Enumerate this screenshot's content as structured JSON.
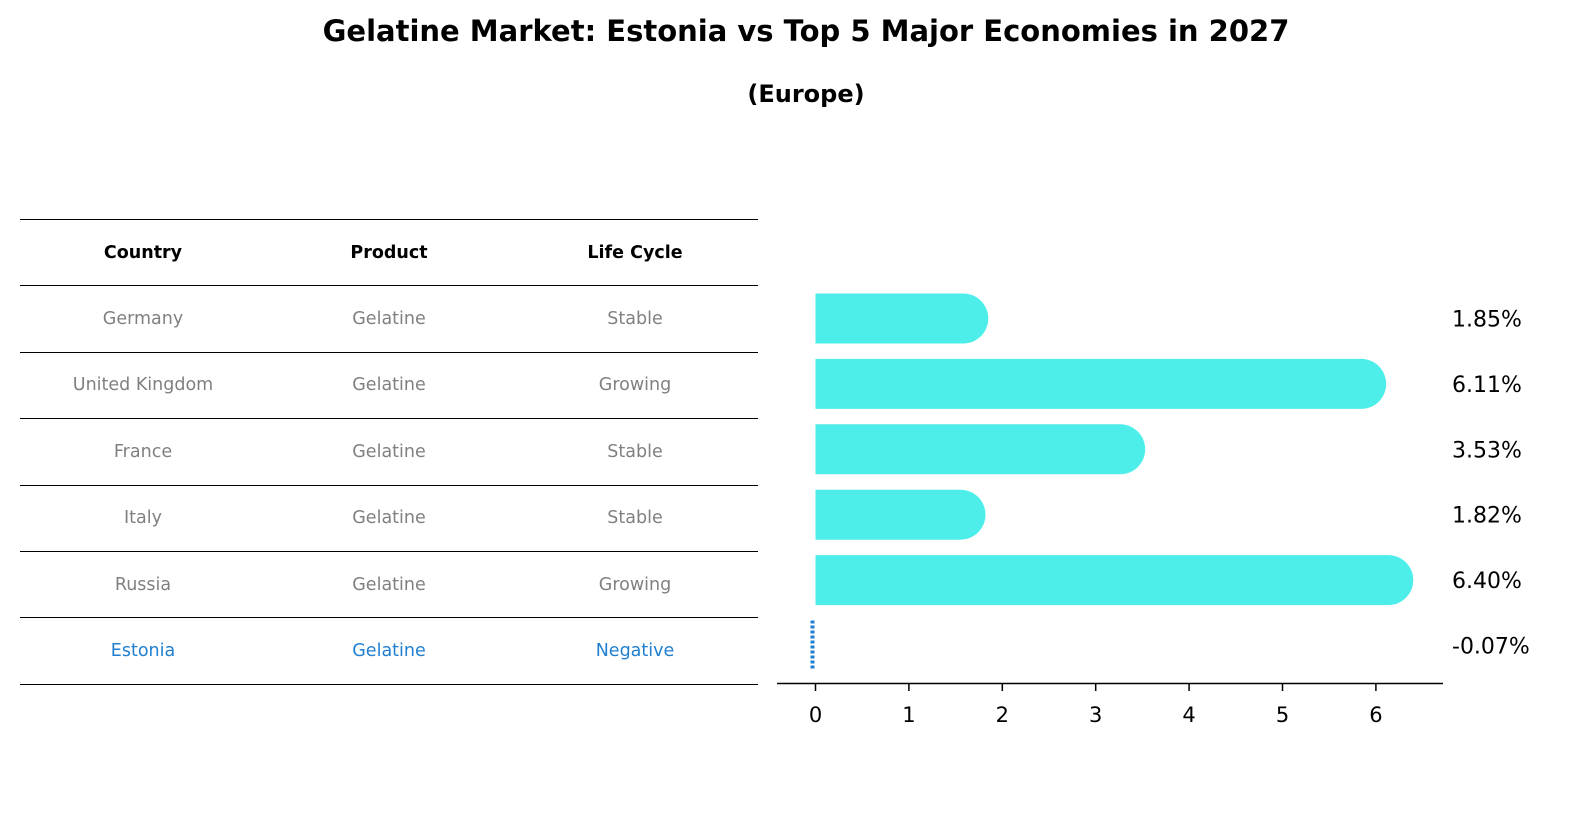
{
  "title": "Gelatine Market: Estonia vs Top 5 Major Economies in 2027",
  "subtitle": "(Europe)",
  "table": {
    "headers": [
      "Country",
      "Product",
      "Life Cycle"
    ],
    "rows": [
      [
        "Germany",
        "Gelatine",
        "Stable"
      ],
      [
        "United Kingdom",
        "Gelatine",
        "Growing"
      ],
      [
        "France",
        "Gelatine",
        "Stable"
      ],
      [
        "Italy",
        "Gelatine",
        "Stable"
      ],
      [
        "Russia",
        "Gelatine",
        "Growing"
      ],
      [
        "Estonia",
        "Gelatine",
        "Negative"
      ]
    ],
    "highlight_row": 5
  },
  "colors": {
    "bar": "#4deeea",
    "highlight": "#1f7fd0",
    "muted_text": "#808080"
  },
  "chart_data": {
    "type": "bar",
    "orientation": "horizontal",
    "categories": [
      "Germany",
      "United Kingdom",
      "France",
      "Italy",
      "Russia",
      "Estonia"
    ],
    "values": [
      1.85,
      6.11,
      3.53,
      1.82,
      6.4,
      -0.07
    ],
    "value_labels": [
      "1.85%",
      "6.11%",
      "3.53%",
      "1.82%",
      "6.40%",
      "-0.07%"
    ],
    "xticks": [
      0,
      1,
      2,
      3,
      4,
      5,
      6
    ],
    "xlim": [
      -0.4,
      6.7
    ]
  }
}
